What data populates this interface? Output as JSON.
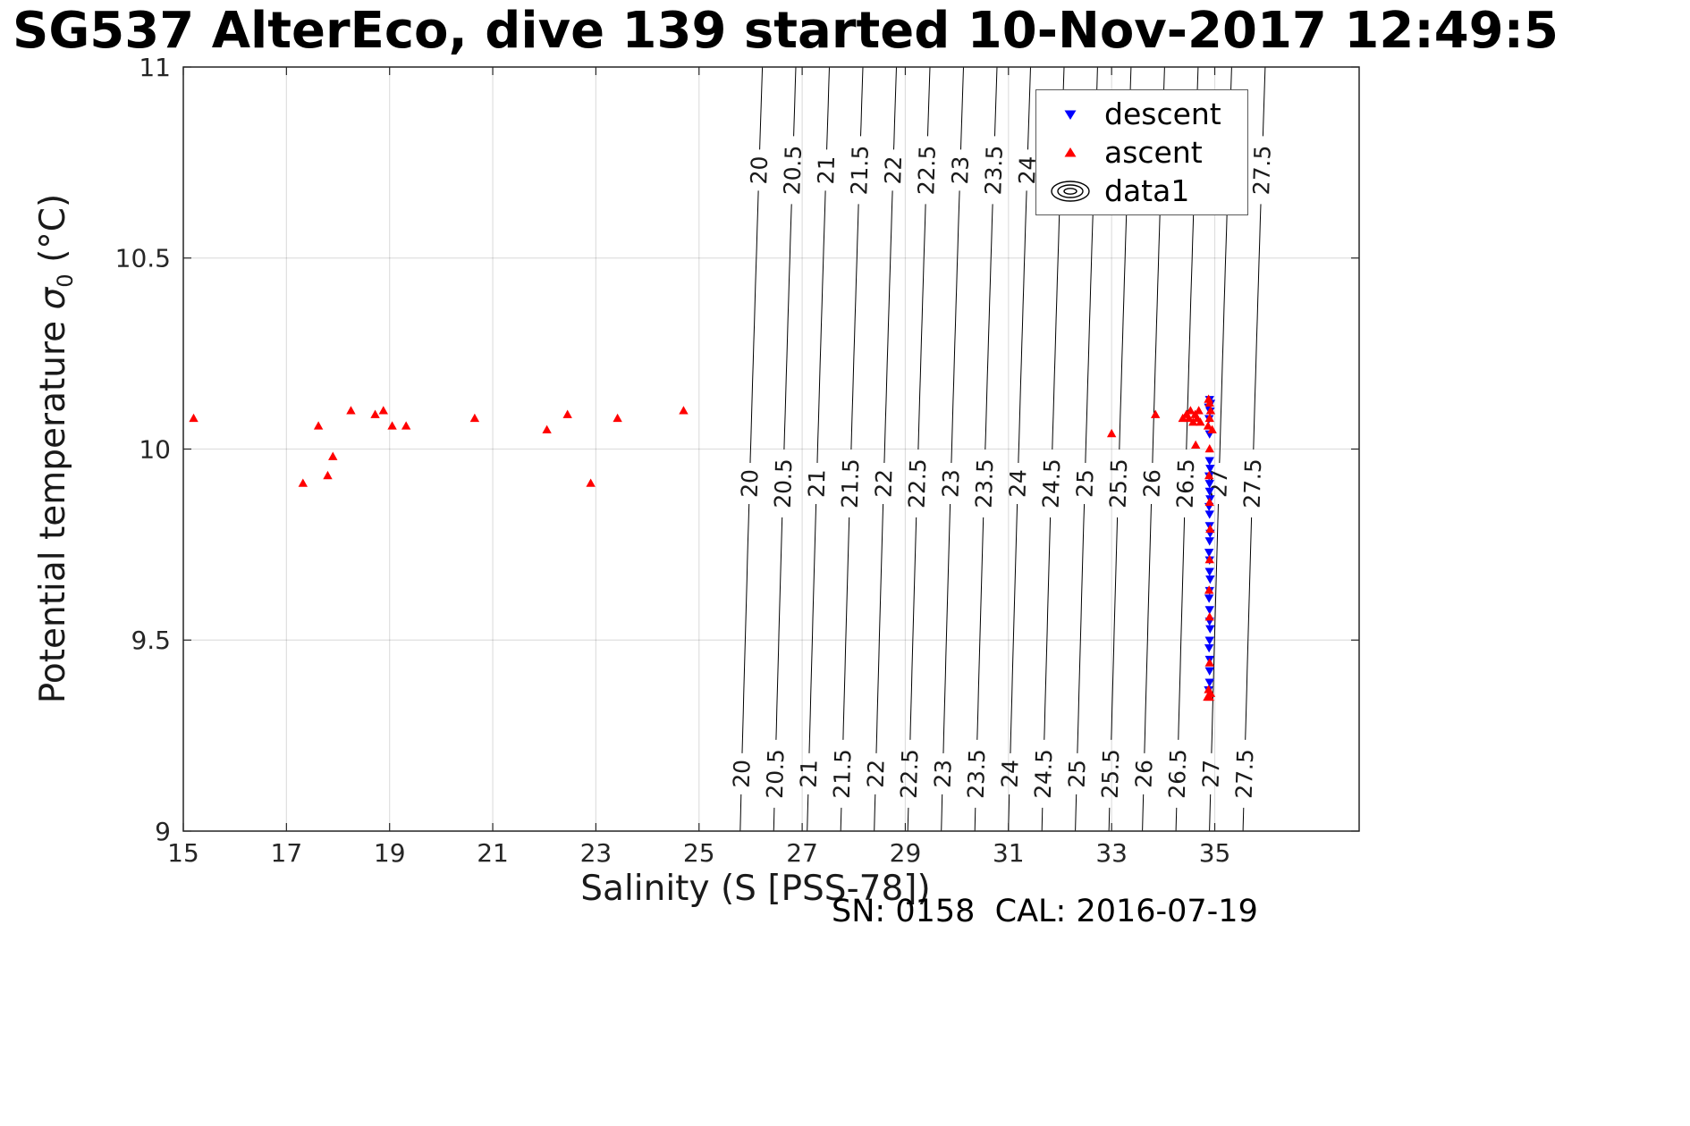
{
  "title": "SG537 AlterEco, dive 139 started 10-Nov-2017 12:49:5",
  "xlabel": "Salinity (S [PSS-78])",
  "ylabel": {
    "prefix": "Potential temperature ",
    "sigma": "σ",
    "sub": "0",
    "suffix": " (°C)"
  },
  "footer": "SN: 0158  CAL: 2016-07-19",
  "legend": {
    "items": [
      {
        "label": "descent",
        "marker": "triangle-down",
        "color": "#0000FF"
      },
      {
        "label": "ascent",
        "marker": "triangle-up",
        "color": "#FF0000"
      },
      {
        "label": "data1",
        "marker": "contour-rings",
        "color": "#000000"
      }
    ]
  },
  "chart_data": {
    "type": "scatter",
    "title": "SG537 AlterEco, dive 139 started 10-Nov-2017 12:49:5",
    "xlabel": "Salinity (S [PSS-78])",
    "ylabel": "Potential temperature sigma_0 (°C)",
    "xlim": [
      15,
      37.8
    ],
    "ylim": [
      9,
      11
    ],
    "xticks": [
      15,
      17,
      19,
      21,
      23,
      25,
      27,
      29,
      31,
      33,
      35
    ],
    "yticks": [
      9,
      9.5,
      10,
      10.5,
      11
    ],
    "grid": true,
    "legend_position": "top-right",
    "colors": {
      "axis": "#262626",
      "grid": "rgba(38,38,38,0.15)",
      "contour": "#000000",
      "contour_label": "#1a1a1a"
    },
    "contours": {
      "description": "sigma-0 isopycnal lines, nearly vertical, labeled at three heights",
      "levels": [
        20,
        20.5,
        21,
        21.5,
        22,
        22.5,
        23,
        23.5,
        24,
        24.5,
        25,
        25.5,
        26,
        26.5,
        27,
        27.5
      ],
      "salinity_at_10C": [
        26.0,
        26.65,
        27.3,
        27.95,
        28.6,
        29.25,
        29.9,
        30.55,
        31.2,
        31.85,
        32.5,
        33.15,
        33.8,
        34.45,
        35.1,
        35.75
      ],
      "dS_dT": 0.215,
      "curvature": 0.0125,
      "label_T": [
        10.73,
        9.91,
        9.15
      ]
    },
    "series": [
      {
        "name": "descent",
        "marker": "v",
        "color": "#0000FF",
        "points": [
          [
            34.9,
            10.13
          ],
          [
            34.92,
            10.12
          ],
          [
            34.88,
            10.11
          ],
          [
            34.91,
            10.1
          ],
          [
            34.89,
            10.08
          ],
          [
            34.9,
            10.04
          ],
          [
            34.9,
            9.97
          ],
          [
            34.91,
            9.95
          ],
          [
            34.89,
            9.93
          ],
          [
            34.9,
            9.91
          ],
          [
            34.9,
            9.89
          ],
          [
            34.91,
            9.87
          ],
          [
            34.89,
            9.85
          ],
          [
            34.9,
            9.83
          ],
          [
            34.9,
            9.8
          ],
          [
            34.91,
            9.78
          ],
          [
            34.9,
            9.76
          ],
          [
            34.89,
            9.73
          ],
          [
            34.9,
            9.71
          ],
          [
            34.9,
            9.68
          ],
          [
            34.91,
            9.66
          ],
          [
            34.9,
            9.63
          ],
          [
            34.89,
            9.61
          ],
          [
            34.9,
            9.58
          ],
          [
            34.9,
            9.55
          ],
          [
            34.91,
            9.53
          ],
          [
            34.9,
            9.5
          ],
          [
            34.89,
            9.48
          ],
          [
            34.9,
            9.45
          ],
          [
            34.9,
            9.42
          ],
          [
            34.9,
            9.39
          ],
          [
            34.88,
            9.37
          ]
        ]
      },
      {
        "name": "ascent",
        "marker": "^",
        "color": "#FF0000",
        "points": [
          [
            15.2,
            10.08
          ],
          [
            17.32,
            9.91
          ],
          [
            17.62,
            10.06
          ],
          [
            17.8,
            9.93
          ],
          [
            17.9,
            9.98
          ],
          [
            18.25,
            10.1
          ],
          [
            18.72,
            10.09
          ],
          [
            18.88,
            10.1
          ],
          [
            19.05,
            10.06
          ],
          [
            19.32,
            10.06
          ],
          [
            20.65,
            10.08
          ],
          [
            22.05,
            10.05
          ],
          [
            22.45,
            10.09
          ],
          [
            22.9,
            9.91
          ],
          [
            23.42,
            10.08
          ],
          [
            24.7,
            10.1
          ],
          [
            33.0,
            10.04
          ],
          [
            33.85,
            10.09
          ],
          [
            34.38,
            10.08
          ],
          [
            34.45,
            10.09
          ],
          [
            34.5,
            10.08
          ],
          [
            34.53,
            10.1
          ],
          [
            34.58,
            10.07
          ],
          [
            34.62,
            10.09
          ],
          [
            34.66,
            10.08
          ],
          [
            34.69,
            10.1
          ],
          [
            34.72,
            10.07
          ],
          [
            34.63,
            10.01
          ],
          [
            34.88,
            10.13
          ],
          [
            34.9,
            10.12
          ],
          [
            34.92,
            10.1
          ],
          [
            34.9,
            10.08
          ],
          [
            34.87,
            10.06
          ],
          [
            34.95,
            10.05
          ],
          [
            34.9,
            10.0
          ],
          [
            34.89,
            9.93
          ],
          [
            34.9,
            9.86
          ],
          [
            34.91,
            9.79
          ],
          [
            34.9,
            9.71
          ],
          [
            34.89,
            9.63
          ],
          [
            34.9,
            9.56
          ],
          [
            34.9,
            9.44
          ],
          [
            34.88,
            9.37
          ],
          [
            34.92,
            9.36
          ],
          [
            34.86,
            9.35
          ],
          [
            34.9,
            9.35
          ]
        ]
      }
    ]
  }
}
